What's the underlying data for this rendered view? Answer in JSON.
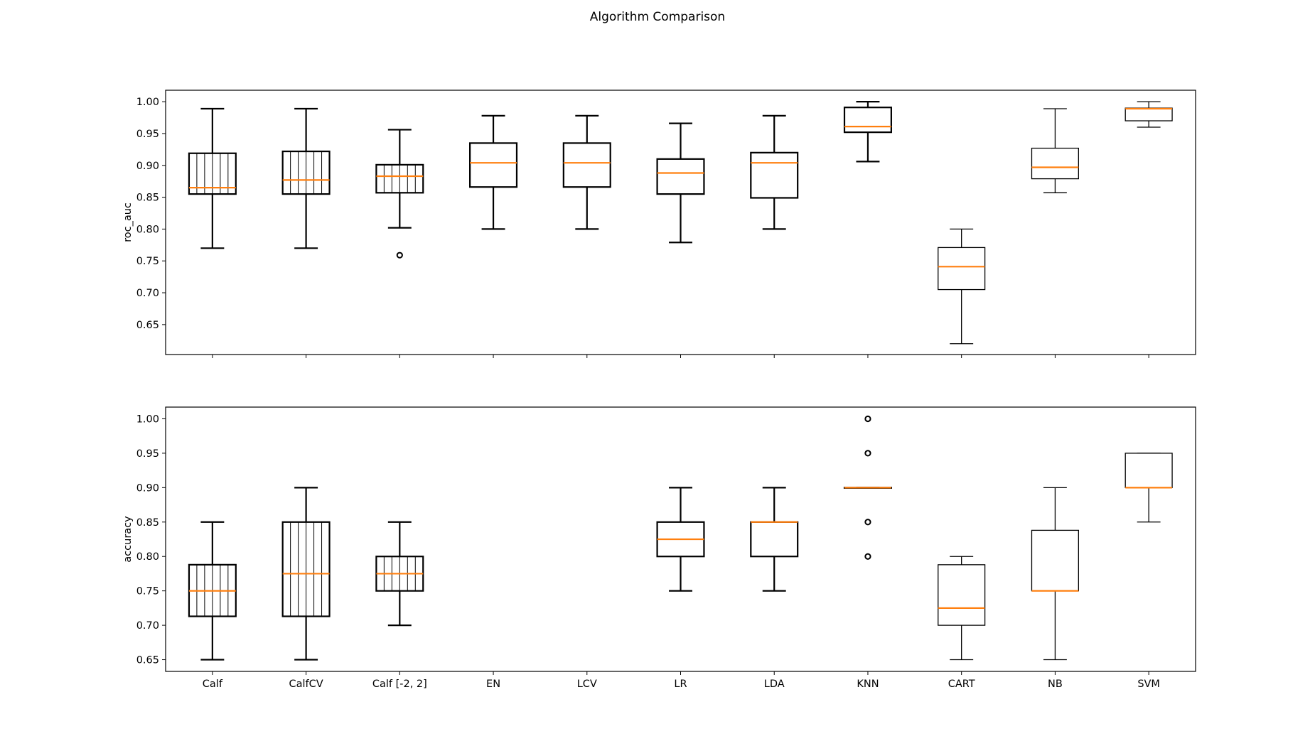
{
  "chart_data": {
    "type": "boxplot",
    "title": "Algorithm Comparison",
    "categories": [
      "Calf",
      "CalfCV",
      "Calf [-2, 2]",
      "EN",
      "LCV",
      "LR",
      "LDA",
      "KNN",
      "CART",
      "NB",
      "SVM"
    ],
    "median_color": "#ff7f0e",
    "box_color": "#000000",
    "panels": [
      {
        "metric": "roc_auc",
        "ylabel": "roc_auc",
        "ylim": [
          0.603,
          1.018
        ],
        "yticks": [
          "0.65",
          "0.70",
          "0.75",
          "0.80",
          "0.85",
          "0.90",
          "0.95",
          "1.00"
        ],
        "show_xticklabels": false,
        "boxes": [
          {
            "category": "Calf",
            "q1": 0.855,
            "median": 0.865,
            "q3": 0.919,
            "whisker_low": 0.77,
            "whisker_high": 0.989,
            "outliers": [],
            "hatch": true
          },
          {
            "category": "CalfCV",
            "q1": 0.855,
            "median": 0.877,
            "q3": 0.922,
            "whisker_low": 0.77,
            "whisker_high": 0.989,
            "outliers": [],
            "hatch": true
          },
          {
            "category": "Calf [-2, 2]",
            "q1": 0.857,
            "median": 0.883,
            "q3": 0.901,
            "whisker_low": 0.802,
            "whisker_high": 0.956,
            "outliers": [
              0.759
            ],
            "hatch": true
          },
          {
            "category": "EN",
            "q1": 0.866,
            "median": 0.904,
            "q3": 0.935,
            "whisker_low": 0.8,
            "whisker_high": 0.978,
            "outliers": [],
            "hatch": false
          },
          {
            "category": "LCV",
            "q1": 0.866,
            "median": 0.904,
            "q3": 0.935,
            "whisker_low": 0.8,
            "whisker_high": 0.978,
            "outliers": [],
            "hatch": false
          },
          {
            "category": "LR",
            "q1": 0.855,
            "median": 0.888,
            "q3": 0.91,
            "whisker_low": 0.779,
            "whisker_high": 0.966,
            "outliers": [],
            "hatch": false
          },
          {
            "category": "LDA",
            "q1": 0.849,
            "median": 0.904,
            "q3": 0.92,
            "whisker_low": 0.8,
            "whisker_high": 0.978,
            "outliers": [],
            "hatch": false
          },
          {
            "category": "KNN",
            "q1": 0.952,
            "median": 0.961,
            "q3": 0.991,
            "whisker_low": 0.906,
            "whisker_high": 1.0,
            "outliers": [],
            "hatch": false
          },
          {
            "category": "CART",
            "q1": 0.705,
            "median": 0.741,
            "q3": 0.771,
            "whisker_low": 0.62,
            "whisker_high": 0.8,
            "outliers": [],
            "hatch": false
          },
          {
            "category": "NB",
            "q1": 0.879,
            "median": 0.897,
            "q3": 0.927,
            "whisker_low": 0.857,
            "whisker_high": 0.989,
            "outliers": [],
            "hatch": false
          },
          {
            "category": "SVM",
            "q1": 0.97,
            "median": 0.989,
            "q3": 0.99,
            "whisker_low": 0.96,
            "whisker_high": 1.0,
            "outliers": [],
            "hatch": false
          }
        ]
      },
      {
        "metric": "accuracy",
        "ylabel": "accuracy",
        "ylim": [
          0.633,
          1.017
        ],
        "yticks": [
          "0.65",
          "0.70",
          "0.75",
          "0.80",
          "0.85",
          "0.90",
          "0.95",
          "1.00"
        ],
        "show_xticklabels": true,
        "boxes": [
          {
            "category": "Calf",
            "q1": 0.713,
            "median": 0.75,
            "q3": 0.788,
            "whisker_low": 0.65,
            "whisker_high": 0.85,
            "outliers": [],
            "hatch": true
          },
          {
            "category": "CalfCV",
            "q1": 0.713,
            "median": 0.775,
            "q3": 0.85,
            "whisker_low": 0.65,
            "whisker_high": 0.9,
            "outliers": [],
            "hatch": true
          },
          {
            "category": "Calf [-2, 2]",
            "q1": 0.75,
            "median": 0.775,
            "q3": 0.8,
            "whisker_low": 0.7,
            "whisker_high": 0.85,
            "outliers": [],
            "hatch": true
          },
          {
            "category": "LR",
            "q1": 0.8,
            "median": 0.825,
            "q3": 0.85,
            "whisker_low": 0.75,
            "whisker_high": 0.9,
            "outliers": [],
            "hatch": false
          },
          {
            "category": "LDA",
            "q1": 0.8,
            "median": 0.85,
            "q3": 0.85,
            "whisker_low": 0.75,
            "whisker_high": 0.9,
            "outliers": [],
            "hatch": false
          },
          {
            "category": "KNN",
            "q1": 0.9,
            "median": 0.9,
            "q3": 0.9,
            "whisker_low": 0.9,
            "whisker_high": 0.9,
            "outliers": [
              0.8,
              0.85,
              0.95,
              1.0
            ],
            "hatch": false
          },
          {
            "category": "CART",
            "q1": 0.7,
            "median": 0.725,
            "q3": 0.788,
            "whisker_low": 0.65,
            "whisker_high": 0.8,
            "outliers": [],
            "hatch": false
          },
          {
            "category": "NB",
            "q1": 0.75,
            "median": 0.75,
            "q3": 0.838,
            "whisker_low": 0.65,
            "whisker_high": 0.9,
            "outliers": [],
            "hatch": false
          },
          {
            "category": "SVM",
            "q1": 0.9,
            "median": 0.9,
            "q3": 0.95,
            "whisker_low": 0.85,
            "whisker_high": 0.95,
            "outliers": [],
            "hatch": false
          }
        ]
      }
    ]
  }
}
